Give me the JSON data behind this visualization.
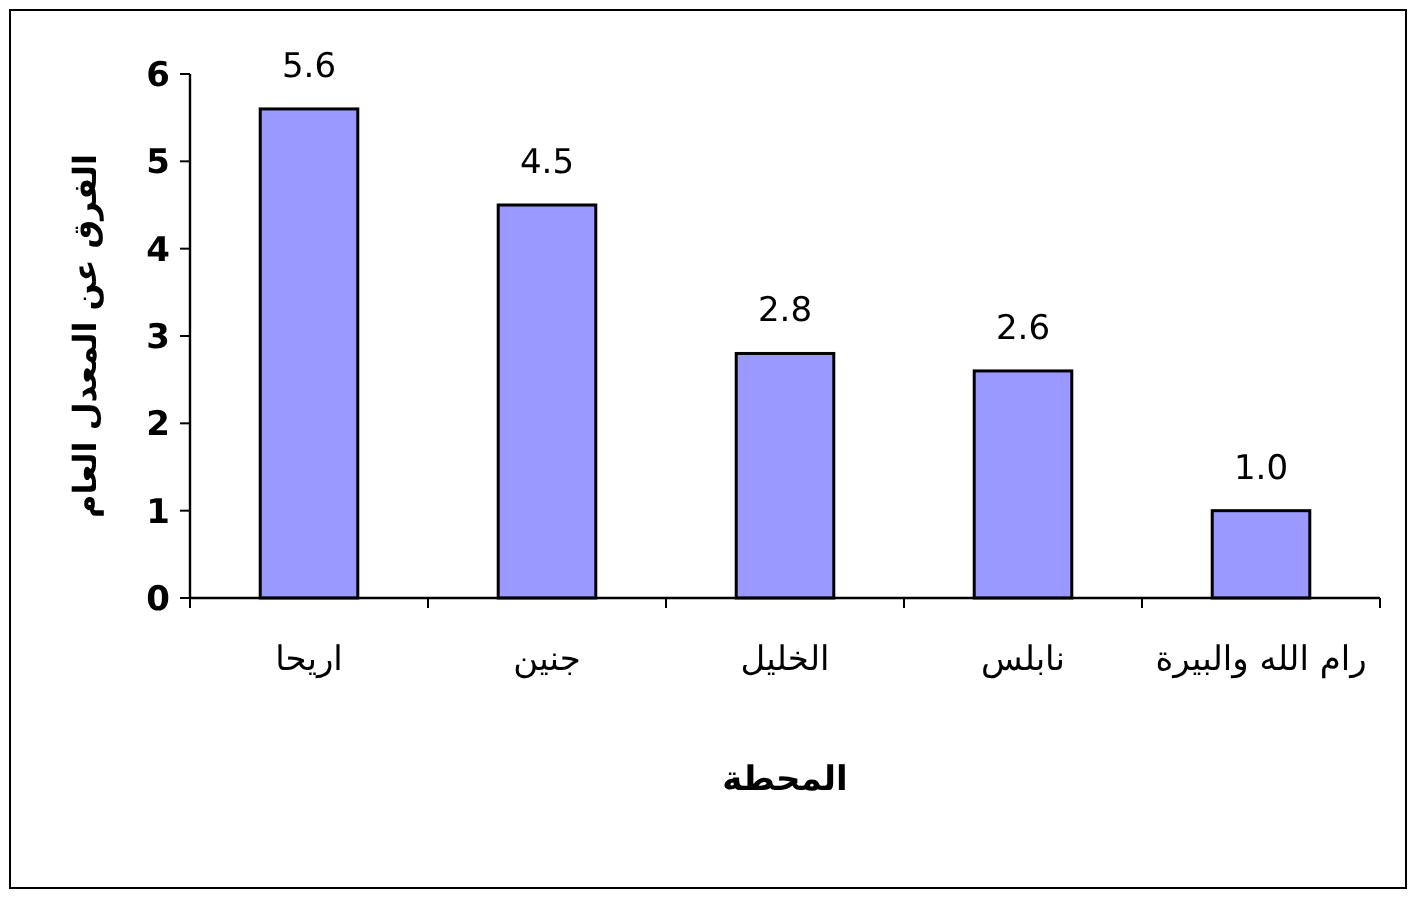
{
  "chart_data": {
    "type": "bar",
    "xlabel": "المحطة",
    "ylabel": "الفرق عن المعدل العام",
    "categories": [
      "اريحا",
      "جنين",
      "الخليل",
      "نابلس",
      "رام الله والبيرة"
    ],
    "values": [
      5.6,
      4.5,
      2.8,
      2.6,
      1.0
    ],
    "value_labels": [
      "5.6",
      "4.5",
      "2.8",
      "2.6",
      "1.0"
    ],
    "color": "#9999ff",
    "ylim": [
      0,
      6
    ],
    "yticks": [
      0,
      1,
      2,
      3,
      4,
      5,
      6
    ],
    "grid": false
  }
}
